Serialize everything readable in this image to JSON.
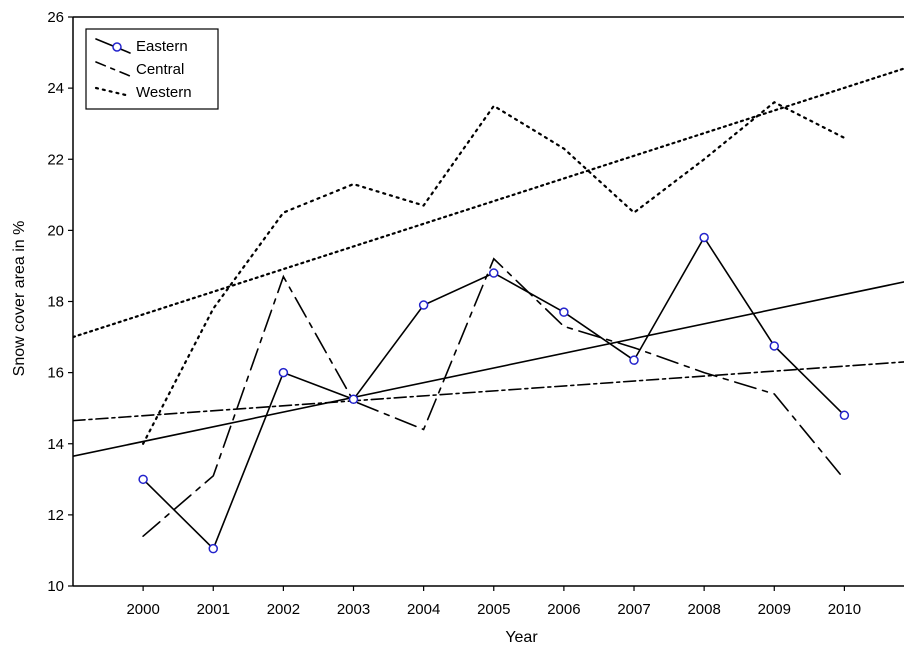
{
  "chart_data": {
    "type": "line",
    "title": "",
    "xlabel": "Year",
    "ylabel": "Snow cover area in %",
    "xlim": [
      1999,
      2010.85
    ],
    "ylim": [
      10,
      26
    ],
    "x": [
      2000,
      2001,
      2002,
      2003,
      2004,
      2005,
      2006,
      2007,
      2008,
      2009,
      2010
    ],
    "xticks": [
      "2000",
      "2001",
      "2002",
      "2003",
      "2004",
      "2005",
      "2006",
      "2007",
      "2008",
      "2009",
      "2010"
    ],
    "yticks": [
      "10",
      "12",
      "14",
      "16",
      "18",
      "20",
      "22",
      "24",
      "26"
    ],
    "grid": false,
    "legend_position": "top-left",
    "series": [
      {
        "name": "Eastern",
        "style": "solid",
        "marker": "circle",
        "marker_color": "#2323cc",
        "values": [
          13.0,
          11.05,
          16.0,
          15.25,
          17.9,
          18.8,
          17.7,
          16.35,
          19.8,
          16.75,
          14.8
        ],
        "trend": [
          13.65,
          18.55
        ]
      },
      {
        "name": "Central",
        "style": "dashed",
        "marker": "none",
        "values": [
          11.4,
          13.1,
          18.7,
          15.2,
          14.4,
          19.2,
          17.3,
          16.7,
          16.0,
          15.4,
          13.0
        ],
        "trend": [
          14.65,
          16.3
        ]
      },
      {
        "name": "Western",
        "style": "dotted",
        "marker": "none",
        "values": [
          14.0,
          17.8,
          20.5,
          21.3,
          20.7,
          23.5,
          22.3,
          20.5,
          22.0,
          23.6,
          22.6
        ],
        "trend": [
          17.0,
          24.55
        ]
      }
    ]
  }
}
